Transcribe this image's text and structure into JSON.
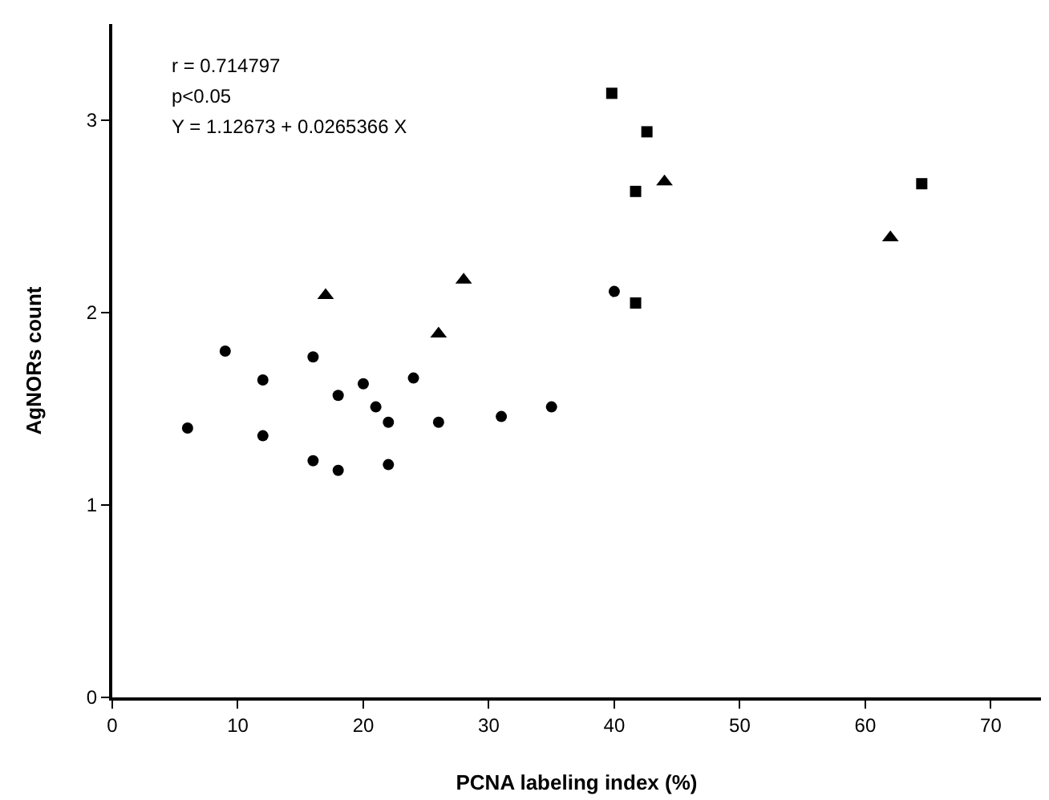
{
  "chart_data": {
    "type": "scatter",
    "xlabel": "PCNA labeling index (%)",
    "ylabel": "AgNORs count",
    "xlim": [
      0,
      74
    ],
    "xticks": [
      0,
      10,
      20,
      30,
      40,
      50,
      60,
      70
    ],
    "ylim": [
      0,
      3.5
    ],
    "yticks": [
      0,
      1,
      2,
      3
    ],
    "grid": false,
    "annotations": [
      "r = 0.714797",
      "p<0.05",
      "Y = 1.12673 + 0.0265366 X"
    ],
    "series": [
      {
        "color": "#000000",
        "marker": "circle",
        "x": [
          6,
          9,
          12,
          12,
          16,
          16,
          18,
          18,
          20,
          21,
          22,
          22,
          24,
          26,
          31,
          35,
          40
        ],
        "values": [
          1.4,
          1.8,
          1.65,
          1.36,
          1.77,
          1.23,
          1.57,
          1.18,
          1.63,
          1.51,
          1.43,
          1.21,
          1.66,
          1.43,
          1.46,
          1.51,
          2.11
        ]
      },
      {
        "color": "#000000",
        "marker": "triangle",
        "x": [
          17,
          26,
          28,
          44,
          62
        ],
        "values": [
          2.09,
          1.89,
          2.17,
          2.68,
          2.39
        ]
      },
      {
        "color": "#000000",
        "marker": "square",
        "x": [
          39.8,
          42.6,
          41.7,
          41.7,
          64.5
        ],
        "values": [
          3.14,
          2.94,
          2.63,
          2.05,
          2.67
        ]
      }
    ]
  }
}
